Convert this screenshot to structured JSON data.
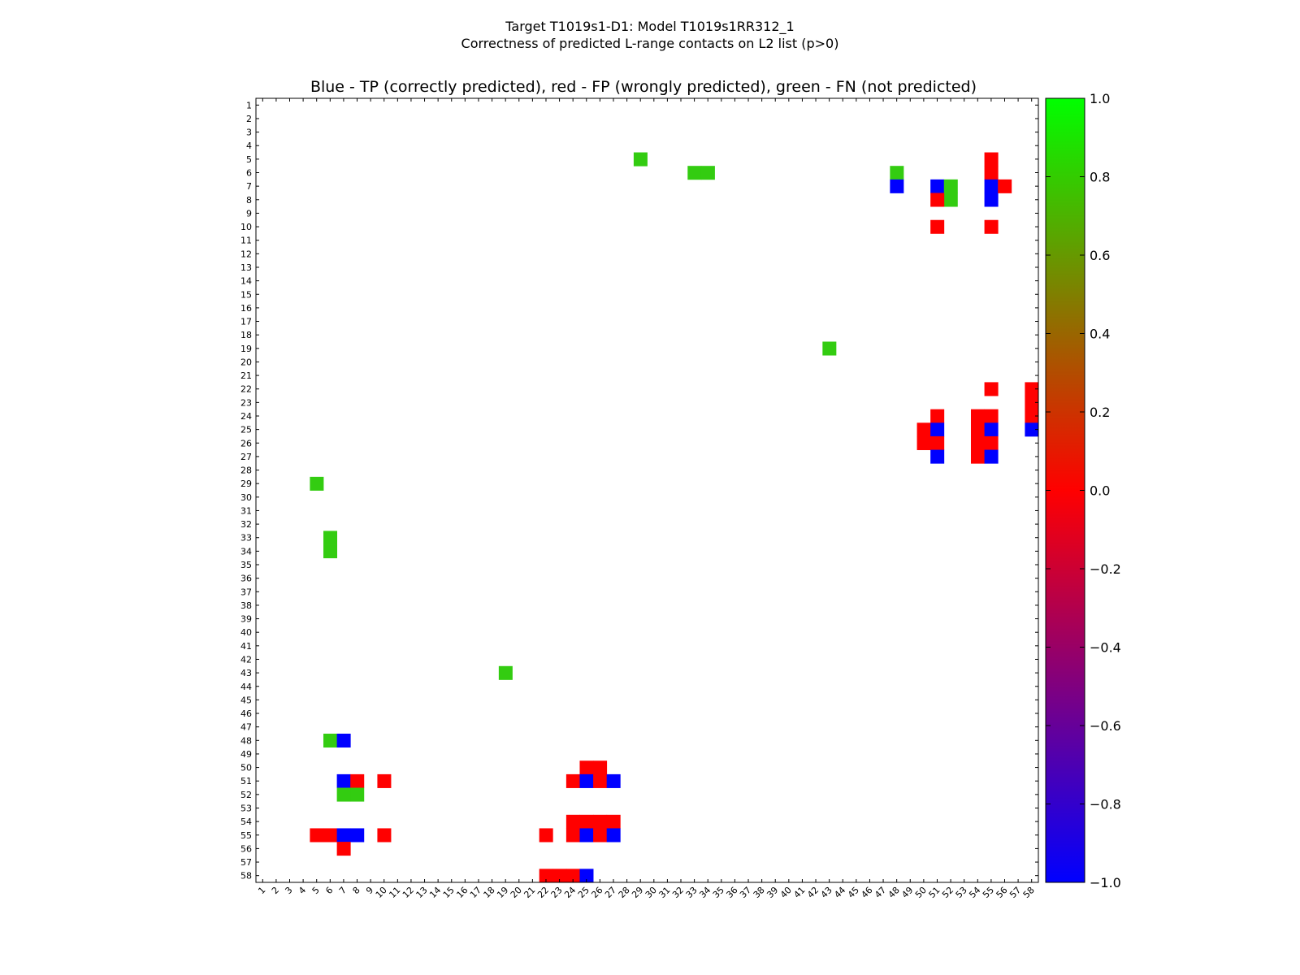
{
  "chart_data": {
    "type": "heatmap",
    "title_line1": "Target T1019s1-D1: Model T1019s1RR312_1",
    "title_line2": "Correctness of predicted L-range contacts on L2 list (p>0)",
    "subtitle": "Blue - TP (correctly predicted), red - FP (wrongly predicted), green - FN (not predicted)",
    "n": 58,
    "x_ticks": [
      "1",
      "2",
      "3",
      "4",
      "5",
      "6",
      "7",
      "8",
      "9",
      "10",
      "11",
      "12",
      "13",
      "14",
      "15",
      "16",
      "17",
      "18",
      "19",
      "20",
      "21",
      "22",
      "23",
      "24",
      "25",
      "26",
      "27",
      "28",
      "29",
      "30",
      "31",
      "32",
      "33",
      "34",
      "35",
      "36",
      "37",
      "38",
      "39",
      "40",
      "41",
      "42",
      "43",
      "44",
      "45",
      "46",
      "47",
      "48",
      "49",
      "50",
      "51",
      "52",
      "53",
      "54",
      "55",
      "56",
      "57",
      "58"
    ],
    "y_ticks": [
      "1",
      "2",
      "3",
      "4",
      "5",
      "6",
      "7",
      "8",
      "9",
      "10",
      "11",
      "12",
      "13",
      "14",
      "15",
      "16",
      "17",
      "18",
      "19",
      "20",
      "21",
      "22",
      "23",
      "24",
      "25",
      "26",
      "27",
      "28",
      "29",
      "30",
      "31",
      "32",
      "33",
      "34",
      "35",
      "36",
      "37",
      "38",
      "39",
      "40",
      "41",
      "42",
      "43",
      "44",
      "45",
      "46",
      "47",
      "48",
      "49",
      "50",
      "51",
      "52",
      "53",
      "54",
      "55",
      "56",
      "57",
      "58"
    ],
    "colorbar": {
      "min": -1.0,
      "max": 1.0,
      "stops": [
        "#0000ff",
        "#ff0000",
        "#00ff00"
      ],
      "tick_labels": [
        "1.0",
        "0.8",
        "0.6",
        "0.4",
        "0.2",
        "0.0",
        "−0.2",
        "−0.4",
        "−0.6",
        "−0.8",
        "−1.0"
      ]
    },
    "legend": {
      "tp": "blue",
      "fp": "red",
      "fn": "green"
    },
    "colors": {
      "tp": "#0000ff",
      "fp": "#ff0000",
      "fn": "#33cc11"
    },
    "cells": [
      {
        "row": 5,
        "col": 29,
        "cls": "fn"
      },
      {
        "row": 6,
        "col": 33,
        "cls": "fn"
      },
      {
        "row": 6,
        "col": 34,
        "cls": "fn"
      },
      {
        "row": 6,
        "col": 48,
        "cls": "fn"
      },
      {
        "row": 5,
        "col": 55,
        "cls": "fp"
      },
      {
        "row": 6,
        "col": 55,
        "cls": "fp"
      },
      {
        "row": 7,
        "col": 48,
        "cls": "tp"
      },
      {
        "row": 7,
        "col": 51,
        "cls": "tp"
      },
      {
        "row": 7,
        "col": 52,
        "cls": "fn"
      },
      {
        "row": 8,
        "col": 52,
        "cls": "fn"
      },
      {
        "row": 8,
        "col": 51,
        "cls": "fp"
      },
      {
        "row": 7,
        "col": 55,
        "cls": "tp"
      },
      {
        "row": 8,
        "col": 55,
        "cls": "tp"
      },
      {
        "row": 7,
        "col": 56,
        "cls": "fp"
      },
      {
        "row": 10,
        "col": 51,
        "cls": "fp"
      },
      {
        "row": 10,
        "col": 55,
        "cls": "fp"
      },
      {
        "row": 19,
        "col": 43,
        "cls": "fn"
      },
      {
        "row": 22,
        "col": 55,
        "cls": "fp"
      },
      {
        "row": 22,
        "col": 58,
        "cls": "fp"
      },
      {
        "row": 23,
        "col": 58,
        "cls": "fp"
      },
      {
        "row": 24,
        "col": 58,
        "cls": "fp"
      },
      {
        "row": 25,
        "col": 58,
        "cls": "tp"
      },
      {
        "row": 24,
        "col": 51,
        "cls": "fp"
      },
      {
        "row": 25,
        "col": 50,
        "cls": "fp"
      },
      {
        "row": 26,
        "col": 50,
        "cls": "fp"
      },
      {
        "row": 25,
        "col": 51,
        "cls": "tp"
      },
      {
        "row": 26,
        "col": 51,
        "cls": "fp"
      },
      {
        "row": 27,
        "col": 51,
        "cls": "tp"
      },
      {
        "row": 24,
        "col": 54,
        "cls": "fp"
      },
      {
        "row": 24,
        "col": 55,
        "cls": "fp"
      },
      {
        "row": 25,
        "col": 54,
        "cls": "fp"
      },
      {
        "row": 25,
        "col": 55,
        "cls": "tp"
      },
      {
        "row": 26,
        "col": 54,
        "cls": "fp"
      },
      {
        "row": 26,
        "col": 55,
        "cls": "fp"
      },
      {
        "row": 27,
        "col": 54,
        "cls": "fp"
      },
      {
        "row": 27,
        "col": 55,
        "cls": "tp"
      },
      {
        "row": 29,
        "col": 5,
        "cls": "fn"
      },
      {
        "row": 33,
        "col": 6,
        "cls": "fn"
      },
      {
        "row": 34,
        "col": 6,
        "cls": "fn"
      },
      {
        "row": 43,
        "col": 19,
        "cls": "fn"
      },
      {
        "row": 48,
        "col": 6,
        "cls": "fn"
      },
      {
        "row": 48,
        "col": 7,
        "cls": "tp"
      },
      {
        "row": 51,
        "col": 7,
        "cls": "tp"
      },
      {
        "row": 51,
        "col": 8,
        "cls": "fp"
      },
      {
        "row": 51,
        "col": 10,
        "cls": "fp"
      },
      {
        "row": 52,
        "col": 7,
        "cls": "fn"
      },
      {
        "row": 52,
        "col": 8,
        "cls": "fn"
      },
      {
        "row": 50,
        "col": 25,
        "cls": "fp"
      },
      {
        "row": 50,
        "col": 26,
        "cls": "fp"
      },
      {
        "row": 51,
        "col": 24,
        "cls": "fp"
      },
      {
        "row": 51,
        "col": 25,
        "cls": "tp"
      },
      {
        "row": 51,
        "col": 26,
        "cls": "fp"
      },
      {
        "row": 51,
        "col": 27,
        "cls": "tp"
      },
      {
        "row": 54,
        "col": 24,
        "cls": "fp"
      },
      {
        "row": 54,
        "col": 25,
        "cls": "fp"
      },
      {
        "row": 54,
        "col": 26,
        "cls": "fp"
      },
      {
        "row": 54,
        "col": 27,
        "cls": "fp"
      },
      {
        "row": 55,
        "col": 5,
        "cls": "fp"
      },
      {
        "row": 55,
        "col": 6,
        "cls": "fp"
      },
      {
        "row": 55,
        "col": 7,
        "cls": "tp"
      },
      {
        "row": 55,
        "col": 8,
        "cls": "tp"
      },
      {
        "row": 55,
        "col": 10,
        "cls": "fp"
      },
      {
        "row": 55,
        "col": 22,
        "cls": "fp"
      },
      {
        "row": 55,
        "col": 24,
        "cls": "fp"
      },
      {
        "row": 55,
        "col": 25,
        "cls": "tp"
      },
      {
        "row": 55,
        "col": 26,
        "cls": "fp"
      },
      {
        "row": 55,
        "col": 27,
        "cls": "tp"
      },
      {
        "row": 56,
        "col": 7,
        "cls": "fp"
      },
      {
        "row": 58,
        "col": 22,
        "cls": "fp"
      },
      {
        "row": 58,
        "col": 23,
        "cls": "fp"
      },
      {
        "row": 58,
        "col": 24,
        "cls": "fp"
      },
      {
        "row": 58,
        "col": 25,
        "cls": "tp"
      }
    ]
  }
}
